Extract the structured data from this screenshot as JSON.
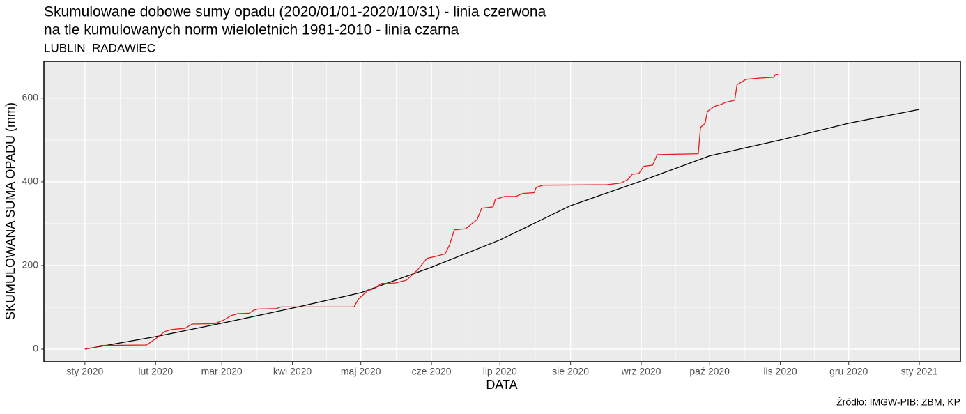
{
  "chart_data": {
    "type": "line",
    "title": "Skumulowane dobowe sumy opadu (2020/01/01-2020/10/31) - linia czerwona",
    "title_line2": "na tle kumulowanych norm wieloletnich 1981-2010 - linia czarna",
    "subtitle": "LUBLIN_RADAWIEC",
    "x_label": "DATA",
    "y_label": "SKUMULOWANA SUMA OPADU (mm)",
    "caption": "Źródło: IMGW-PIB: ZBM, KP",
    "xlim": [
      "2019-12-14",
      "2021-01-19"
    ],
    "ylim": [
      -30,
      688
    ],
    "yticks": [
      0,
      200,
      400,
      600
    ],
    "xticks": [
      {
        "value": "2020-01-01",
        "label": "sty 2020"
      },
      {
        "value": "2020-02-01",
        "label": "lut 2020"
      },
      {
        "value": "2020-03-01",
        "label": "mar 2020"
      },
      {
        "value": "2020-04-01",
        "label": "kwi 2020"
      },
      {
        "value": "2020-05-01",
        "label": "maj 2020"
      },
      {
        "value": "2020-06-01",
        "label": "cze 2020"
      },
      {
        "value": "2020-07-01",
        "label": "lip 2020"
      },
      {
        "value": "2020-08-01",
        "label": "sie 2020"
      },
      {
        "value": "2020-09-01",
        "label": "wrz 2020"
      },
      {
        "value": "2020-10-01",
        "label": "paź 2020"
      },
      {
        "value": "2020-11-01",
        "label": "lis 2020"
      },
      {
        "value": "2020-12-01",
        "label": "gru 2020"
      },
      {
        "value": "2021-01-01",
        "label": "sty 2021"
      }
    ],
    "grid": true,
    "series": [
      {
        "color": "#000000",
        "x": [
          "2020-01-01",
          "2020-02-01",
          "2020-03-01",
          "2020-04-01",
          "2020-05-01",
          "2020-06-01",
          "2020-07-01",
          "2020-08-01",
          "2020-09-01",
          "2020-10-01",
          "2020-11-01",
          "2020-12-01",
          "2021-01-01"
        ],
        "values": [
          0,
          30,
          62,
          98,
          135,
          196,
          261,
          343,
          402,
          462,
          500,
          540,
          573
        ]
      },
      {
        "color": "#e41a1c",
        "x": [
          "2020-01-01",
          "2020-01-06",
          "2020-01-08",
          "2020-01-28",
          "2020-02-01",
          "2020-02-05",
          "2020-02-08",
          "2020-02-14",
          "2020-02-17",
          "2020-02-27",
          "2020-03-02",
          "2020-03-05",
          "2020-03-08",
          "2020-03-13",
          "2020-03-15",
          "2020-03-17",
          "2020-03-25",
          "2020-03-27",
          "2020-04-28",
          "2020-04-30",
          "2020-05-02",
          "2020-05-04",
          "2020-05-07",
          "2020-05-10",
          "2020-05-16",
          "2020-05-19",
          "2020-05-21",
          "2020-05-24",
          "2020-05-26",
          "2020-05-30",
          "2020-06-03",
          "2020-06-07",
          "2020-06-09",
          "2020-06-11",
          "2020-06-16",
          "2020-06-21",
          "2020-06-23",
          "2020-06-28",
          "2020-06-29",
          "2020-07-03",
          "2020-07-08",
          "2020-07-11",
          "2020-07-16",
          "2020-07-17",
          "2020-07-20",
          "2020-08-17",
          "2020-08-23",
          "2020-08-26",
          "2020-08-28",
          "2020-08-31",
          "2020-09-02",
          "2020-09-06",
          "2020-09-08",
          "2020-09-26",
          "2020-09-27",
          "2020-09-29",
          "2020-09-30",
          "2020-10-03",
          "2020-10-06",
          "2020-10-08",
          "2020-10-12",
          "2020-10-13",
          "2020-10-17",
          "2020-10-23",
          "2020-10-29",
          "2020-10-30",
          "2020-10-31"
        ],
        "values": [
          0,
          5,
          9,
          10,
          25,
          42,
          47,
          50,
          60,
          61,
          70,
          80,
          85,
          86,
          93,
          96,
          97,
          101,
          101,
          120,
          130,
          140,
          145,
          157,
          158,
          162,
          165,
          180,
          190,
          217,
          222,
          228,
          250,
          285,
          288,
          310,
          337,
          340,
          358,
          365,
          365,
          372,
          374,
          387,
          392,
          393,
          397,
          405,
          418,
          420,
          437,
          440,
          465,
          467,
          530,
          540,
          568,
          580,
          585,
          590,
          595,
          632,
          645,
          648,
          650,
          657,
          657
        ]
      }
    ]
  }
}
